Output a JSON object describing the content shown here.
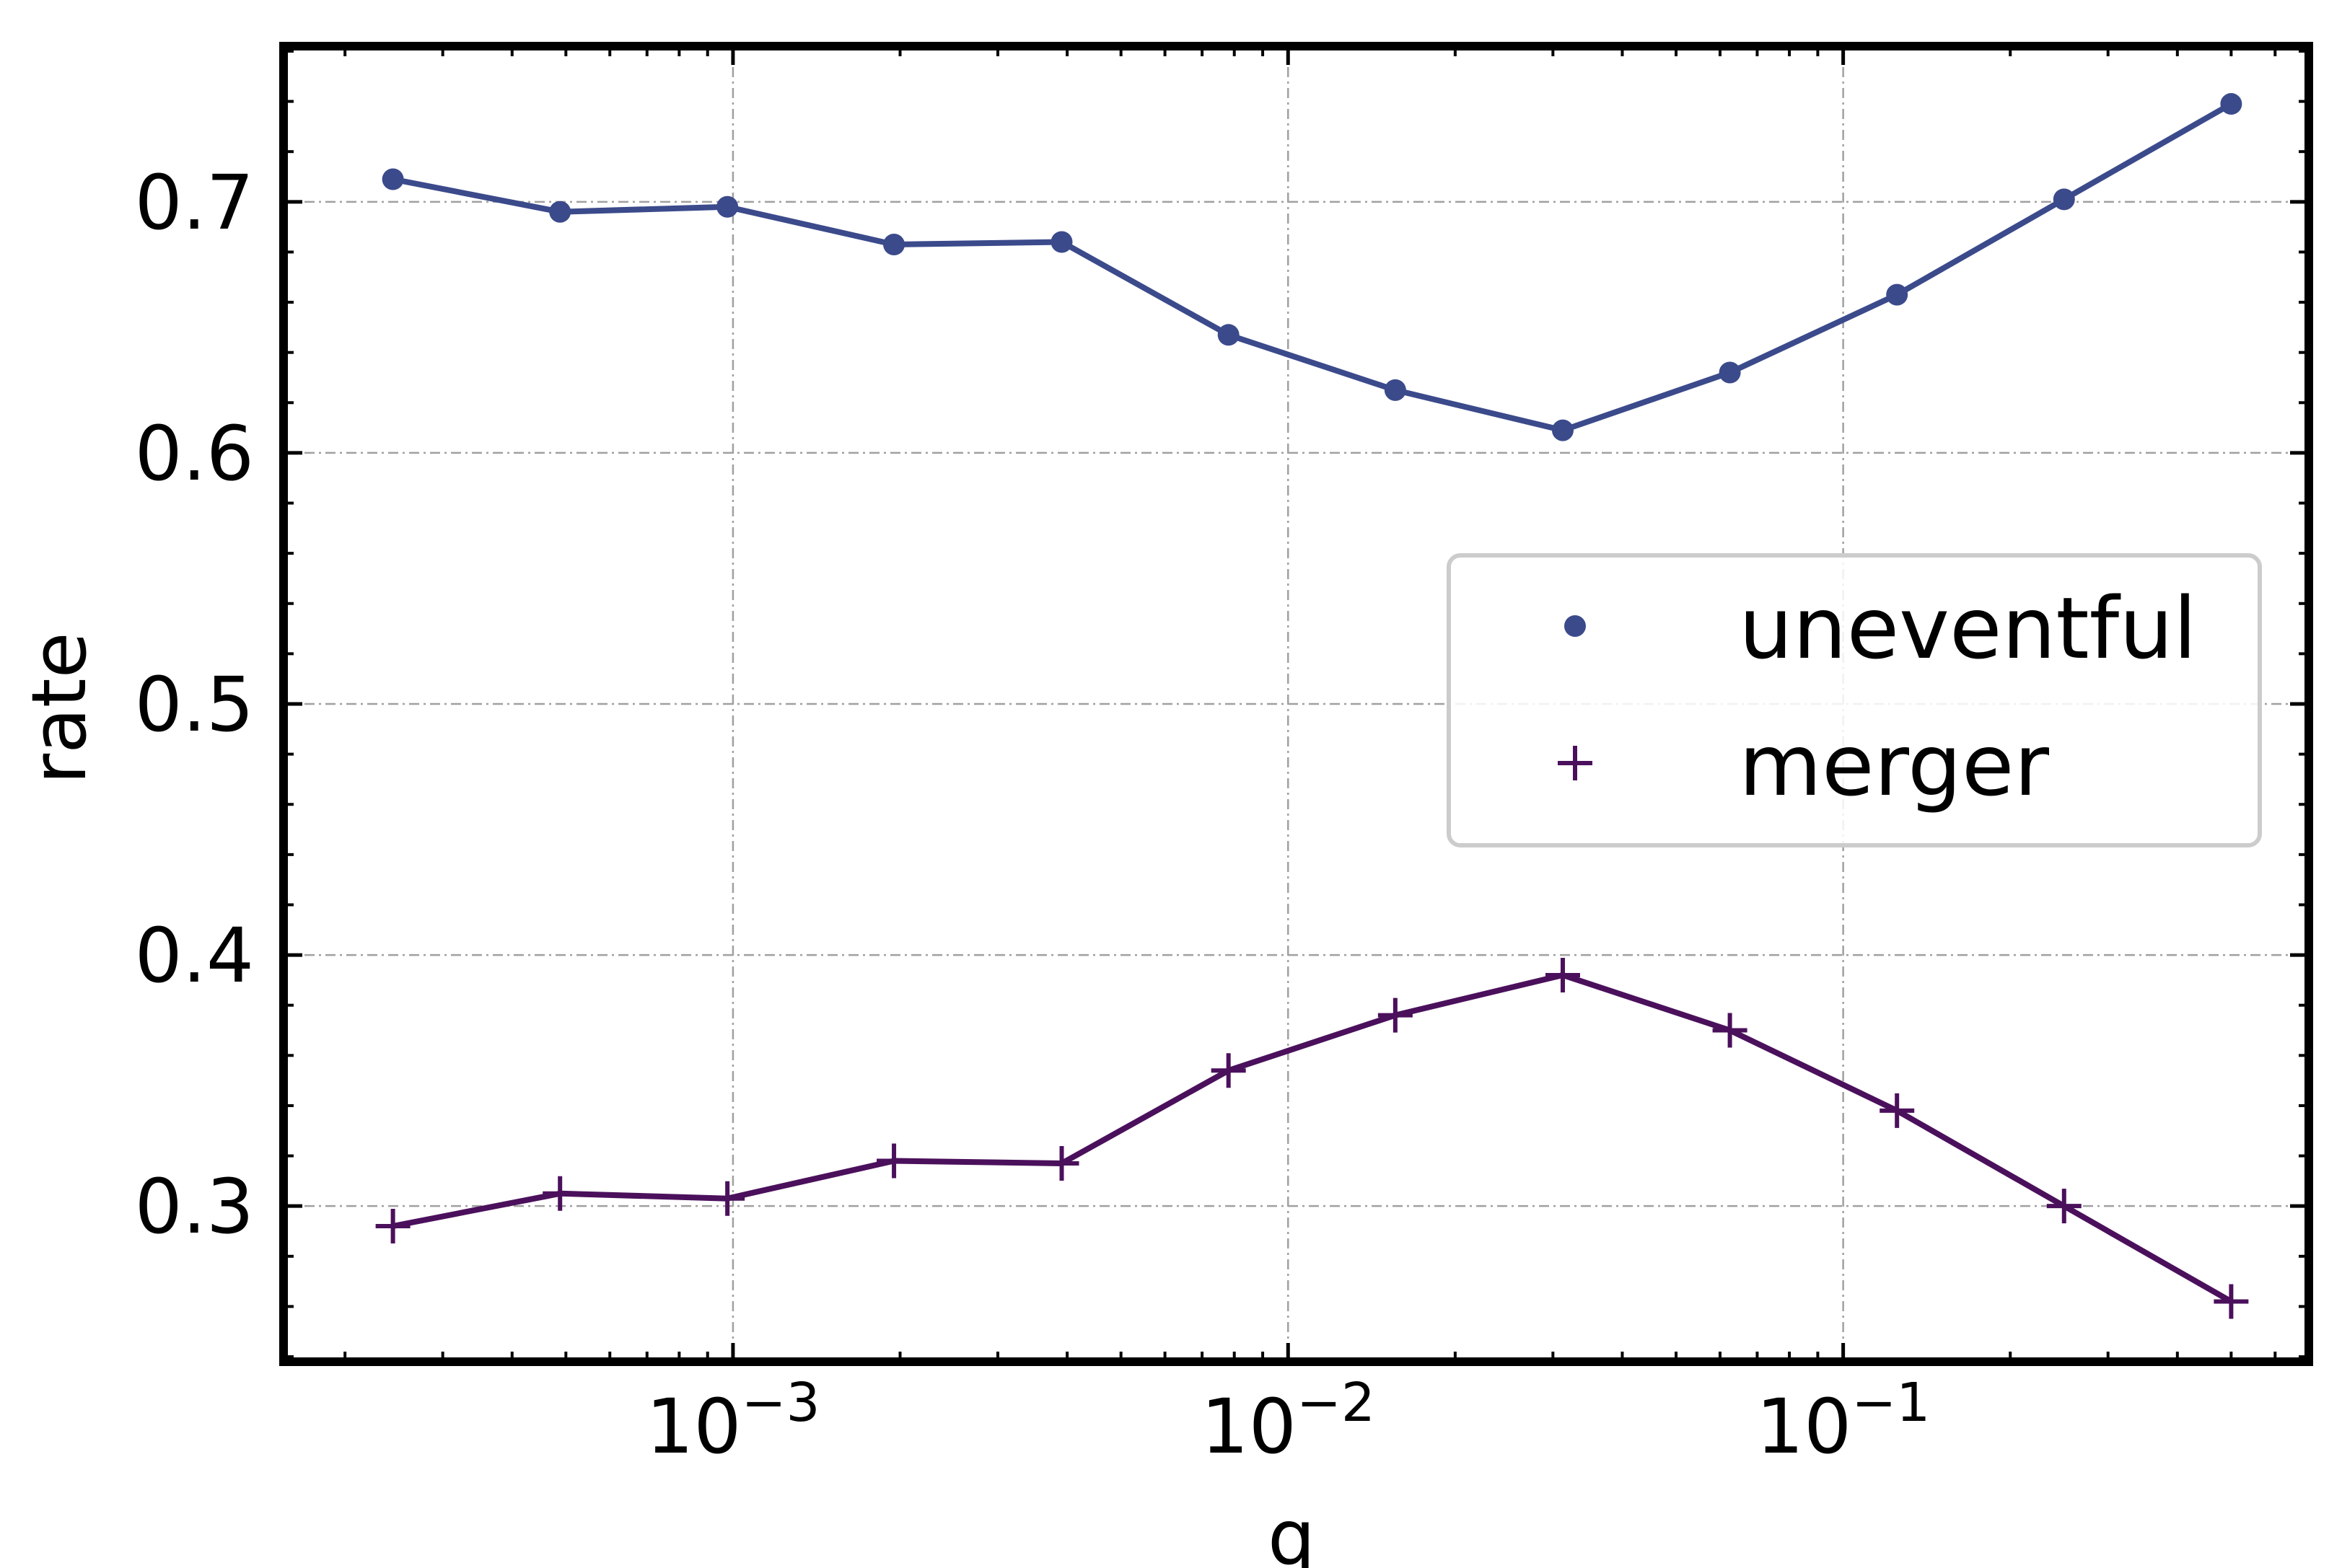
{
  "chart_data": {
    "type": "line",
    "xscale": "log",
    "xlabel": "q",
    "ylabel": "rate",
    "xlim": [
      0.000155,
      0.69
    ],
    "ylim": [
      0.238,
      0.762
    ],
    "x_ticks": [
      {
        "value": 0.001,
        "base": "10",
        "exp": "−3"
      },
      {
        "value": 0.01,
        "base": "10",
        "exp": "−2"
      },
      {
        "value": 0.1,
        "base": "10",
        "exp": "−1"
      }
    ],
    "y_ticks": [
      {
        "value": 0.3,
        "label": "0.3"
      },
      {
        "value": 0.4,
        "label": "0.4"
      },
      {
        "value": 0.5,
        "label": "0.5"
      },
      {
        "value": 0.6,
        "label": "0.6"
      },
      {
        "value": 0.7,
        "label": "0.7"
      }
    ],
    "grid": true,
    "legend_position": "center-right",
    "series": [
      {
        "name": "uneventful",
        "marker": "dot",
        "color": "#3b4a8b",
        "x": [
          0.000244,
          0.000488,
          0.000977,
          0.00195,
          0.00391,
          0.00781,
          0.0156,
          0.03125,
          0.0625,
          0.125,
          0.25,
          0.5
        ],
        "y": [
          0.709,
          0.696,
          0.698,
          0.683,
          0.684,
          0.647,
          0.625,
          0.609,
          0.632,
          0.663,
          0.701,
          0.739
        ]
      },
      {
        "name": "merger",
        "marker": "plus",
        "color": "#4b105c",
        "x": [
          0.000244,
          0.000488,
          0.000977,
          0.00195,
          0.00391,
          0.00781,
          0.0156,
          0.03125,
          0.0625,
          0.125,
          0.25,
          0.5
        ],
        "y": [
          0.292,
          0.305,
          0.303,
          0.318,
          0.317,
          0.354,
          0.376,
          0.392,
          0.37,
          0.338,
          0.3,
          0.262
        ]
      }
    ]
  }
}
